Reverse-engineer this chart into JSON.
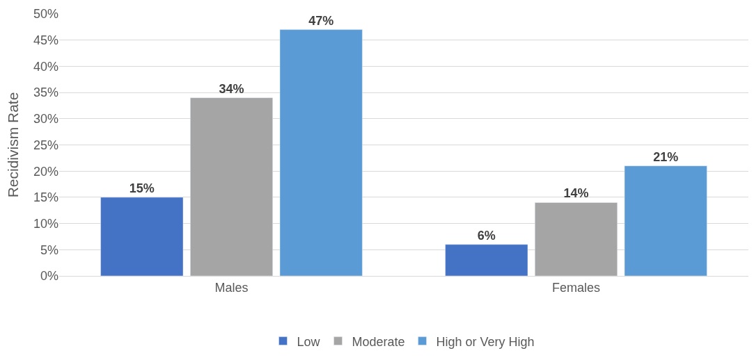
{
  "chart_data": {
    "type": "bar",
    "ylabel": "Recidivism Rate",
    "categories": [
      "Males",
      "Females"
    ],
    "series": [
      {
        "name": "Low",
        "color": "#4472c4",
        "values": [
          15,
          6
        ],
        "value_labels": [
          "15%",
          "6%"
        ]
      },
      {
        "name": "Moderate",
        "color": "#a5a5a5",
        "values": [
          34,
          14
        ],
        "value_labels": [
          "34%",
          "14%"
        ]
      },
      {
        "name": "High or Very High",
        "color": "#5b9bd5",
        "values": [
          47,
          21
        ],
        "value_labels": [
          "47%",
          "21%"
        ]
      }
    ],
    "ylim": [
      0,
      50
    ],
    "yticks": [
      {
        "value": 0,
        "label": "0%"
      },
      {
        "value": 5,
        "label": "5%"
      },
      {
        "value": 10,
        "label": "10%"
      },
      {
        "value": 15,
        "label": "15%"
      },
      {
        "value": 20,
        "label": "20%"
      },
      {
        "value": 25,
        "label": "25%"
      },
      {
        "value": 30,
        "label": "30%"
      },
      {
        "value": 35,
        "label": "35%"
      },
      {
        "value": 40,
        "label": "40%"
      },
      {
        "value": 45,
        "label": "45%"
      },
      {
        "value": 50,
        "label": "50%"
      }
    ],
    "grid": "y",
    "legend": "bottom"
  }
}
